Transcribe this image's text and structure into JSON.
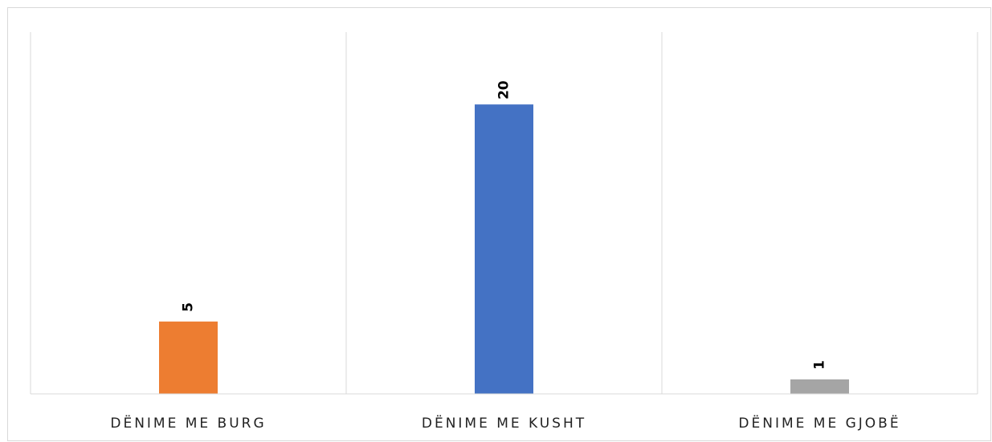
{
  "chart_data": {
    "type": "bar",
    "categories": [
      "DËNIME ME BURG",
      "DËNIME ME KUSHT",
      "DËNIME ME GJOBË"
    ],
    "values": [
      5,
      20,
      1
    ],
    "colors": [
      "#ed7d31",
      "#4472c4",
      "#a5a5a5"
    ],
    "ylim": [
      0,
      25
    ]
  }
}
